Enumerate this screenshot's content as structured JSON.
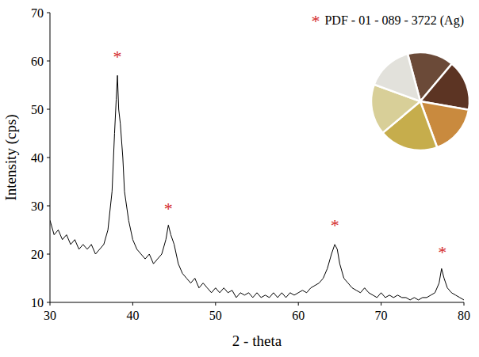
{
  "chart_data": {
    "type": "line",
    "xlabel": "2 - theta",
    "ylabel": "Intensity (cps)",
    "color": "#000000",
    "xlim": [
      30,
      80
    ],
    "xticks": [
      30,
      40,
      50,
      60,
      70,
      80
    ],
    "ylim": [
      10,
      70
    ],
    "yticks": [
      10,
      20,
      30,
      40,
      50,
      60,
      70
    ],
    "grid": false,
    "x": [
      30,
      30.5,
      31,
      31.5,
      32,
      32.5,
      33,
      33.5,
      34,
      34.5,
      35,
      35.5,
      36,
      36.5,
      37,
      37.5,
      37.8,
      38,
      38.15,
      38.3,
      38.5,
      38.8,
      39,
      39.5,
      40,
      40.5,
      41,
      41.5,
      42,
      42.5,
      43,
      43.5,
      44,
      44.3,
      44.6,
      45,
      45.5,
      46,
      46.5,
      47,
      47.5,
      48,
      48.5,
      49,
      49.5,
      50,
      50.5,
      51,
      51.5,
      52,
      52.5,
      53,
      53.5,
      54,
      54.5,
      55,
      55.5,
      56,
      56.5,
      57,
      57.5,
      58,
      58.5,
      59,
      59.5,
      60,
      60.5,
      61,
      61.5,
      62,
      62.5,
      63,
      63.5,
      64,
      64.4,
      64.7,
      65,
      65.5,
      66,
      66.5,
      67,
      67.5,
      68,
      68.5,
      69,
      69.5,
      70,
      70.5,
      71,
      71.5,
      72,
      72.5,
      73,
      73.5,
      74,
      74.5,
      75,
      75.5,
      76,
      76.5,
      77,
      77.3,
      77.6,
      78,
      78.5,
      79,
      79.5,
      80
    ],
    "values": [
      27,
      24,
      25,
      23,
      24,
      22,
      23,
      21,
      22,
      21,
      22,
      20,
      21,
      22,
      25,
      33,
      45,
      52,
      57,
      50,
      47,
      40,
      33,
      27,
      23,
      21,
      20,
      19,
      20,
      18,
      19,
      20,
      23,
      26,
      24,
      22,
      18,
      16,
      15,
      14,
      15,
      13,
      14,
      13,
      12,
      13,
      12,
      13,
      12,
      12.5,
      11,
      12,
      11.5,
      12,
      11,
      12,
      11,
      11.5,
      11,
      12,
      11,
      12,
      11,
      12,
      11.5,
      12,
      12.5,
      12,
      13,
      13.5,
      14,
      15,
      17,
      20,
      22,
      21,
      18,
      15,
      14,
      13,
      12.5,
      12,
      13,
      12,
      11.5,
      11,
      12,
      11,
      11.5,
      11,
      11.5,
      11,
      11,
      10.5,
      11,
      10.5,
      11,
      11,
      11.5,
      12,
      14,
      17,
      15,
      13,
      12,
      11.5,
      11,
      10.5
    ],
    "reference_pattern": {
      "symbol": "*",
      "label": "PDF - 01 - 089 - 3722 (Ag)",
      "color": "#d42a2a"
    },
    "peaks": [
      {
        "x": 38.15,
        "y": 61
      },
      {
        "x": 44.3,
        "y": 29.5
      },
      {
        "x": 64.4,
        "y": 26
      },
      {
        "x": 77.4,
        "y": 20.5
      }
    ]
  }
}
